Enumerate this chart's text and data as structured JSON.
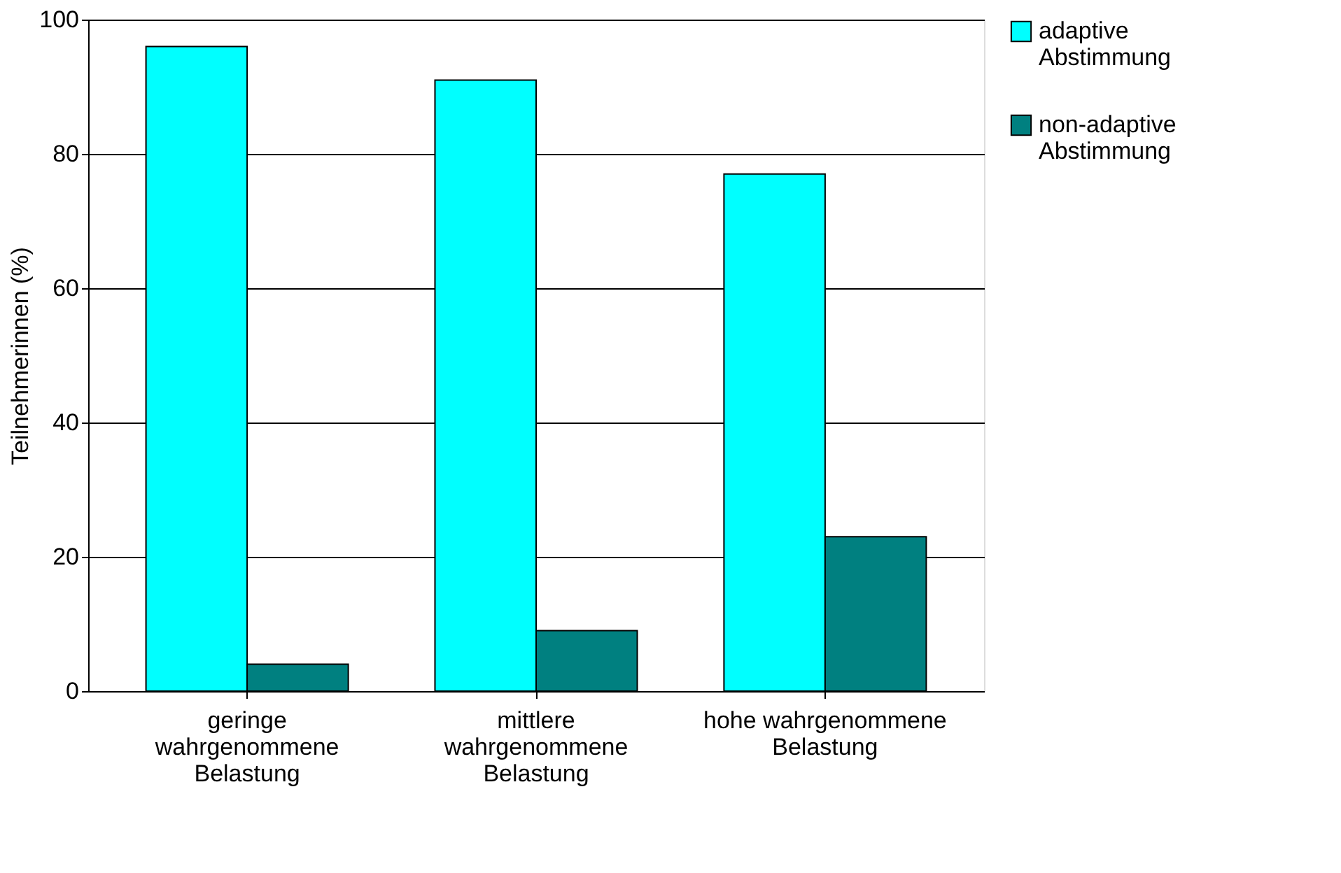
{
  "chart_data": {
    "type": "bar",
    "ylabel": "Teilnehmerinnen (%)",
    "categories": [
      "geringe\nwahrgenommene\nBelastung",
      "mittlere\nwahrgenommene\nBelastung",
      "hohe wahrgenommene\nBelastung"
    ],
    "series": [
      {
        "name": "adaptive\nAbstimmung",
        "color": "#00ffff",
        "values": [
          96,
          91,
          77
        ]
      },
      {
        "name": "non-adaptive\nAbstimmung",
        "color": "#008080",
        "values": [
          4,
          9,
          23
        ]
      }
    ],
    "ylim": [
      0,
      100
    ],
    "yticks": [
      0,
      20,
      40,
      60,
      80,
      100
    ],
    "grid": "y",
    "legend": "right"
  }
}
